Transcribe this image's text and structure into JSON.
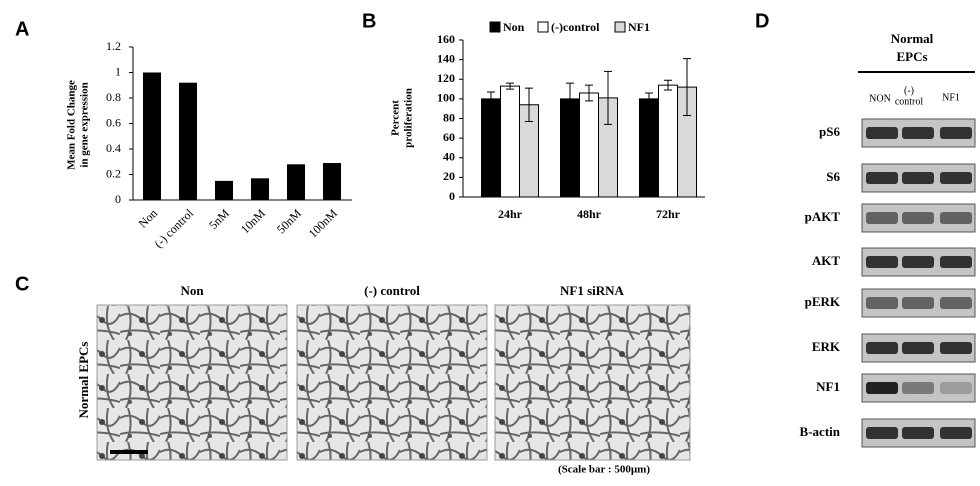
{
  "chart_data": [
    {
      "type": "bar",
      "panel": "A",
      "ylabel": [
        "Mean Fold Change",
        "in gene expression"
      ],
      "categories": [
        "Non",
        "(-) control",
        "5nM",
        "10nM",
        "50nM",
        "100nM"
      ],
      "values": [
        1.0,
        0.92,
        0.15,
        0.17,
        0.28,
        0.29
      ],
      "color": "#000000",
      "ylim": [
        0,
        1.2
      ],
      "yticks": [
        0,
        0.2,
        0.4,
        0.6,
        0.8,
        1,
        1.2
      ]
    },
    {
      "type": "grouped-bar",
      "panel": "B",
      "ylabel": [
        "Percent",
        "proliferation"
      ],
      "categories": [
        "24hr",
        "48hr",
        "72hr"
      ],
      "series": [
        {
          "name": "Non",
          "color": "#000000",
          "values": [
            100,
            100,
            100
          ],
          "errors": [
            7,
            16,
            6
          ]
        },
        {
          "name": "(-)control",
          "color": "#ffffff",
          "values": [
            113,
            106,
            114
          ],
          "errors": [
            3,
            8,
            5
          ]
        },
        {
          "name": "NF1",
          "color": "#d9d9d9",
          "values": [
            94,
            101,
            112
          ],
          "errors": [
            17,
            27,
            29
          ]
        }
      ],
      "ylim": [
        0,
        160
      ],
      "yticks": [
        0,
        20,
        40,
        60,
        80,
        100,
        120,
        140,
        160
      ]
    }
  ],
  "panel_c": {
    "panel": "C",
    "row_label": "Normal EPCs",
    "titles": [
      "Non",
      "(-) control",
      "NF1 siRNA"
    ],
    "scale_note": "(Scale bar : 500µm)"
  },
  "panel_d": {
    "panel": "D",
    "header": [
      "Normal",
      "EPCs"
    ],
    "columns": [
      "NON",
      "(-)",
      "control",
      "NF1"
    ],
    "rows": [
      "pS6",
      "S6",
      "pAKT",
      "AKT",
      "pERK",
      "ERK",
      "NF1",
      "B-actin"
    ]
  }
}
